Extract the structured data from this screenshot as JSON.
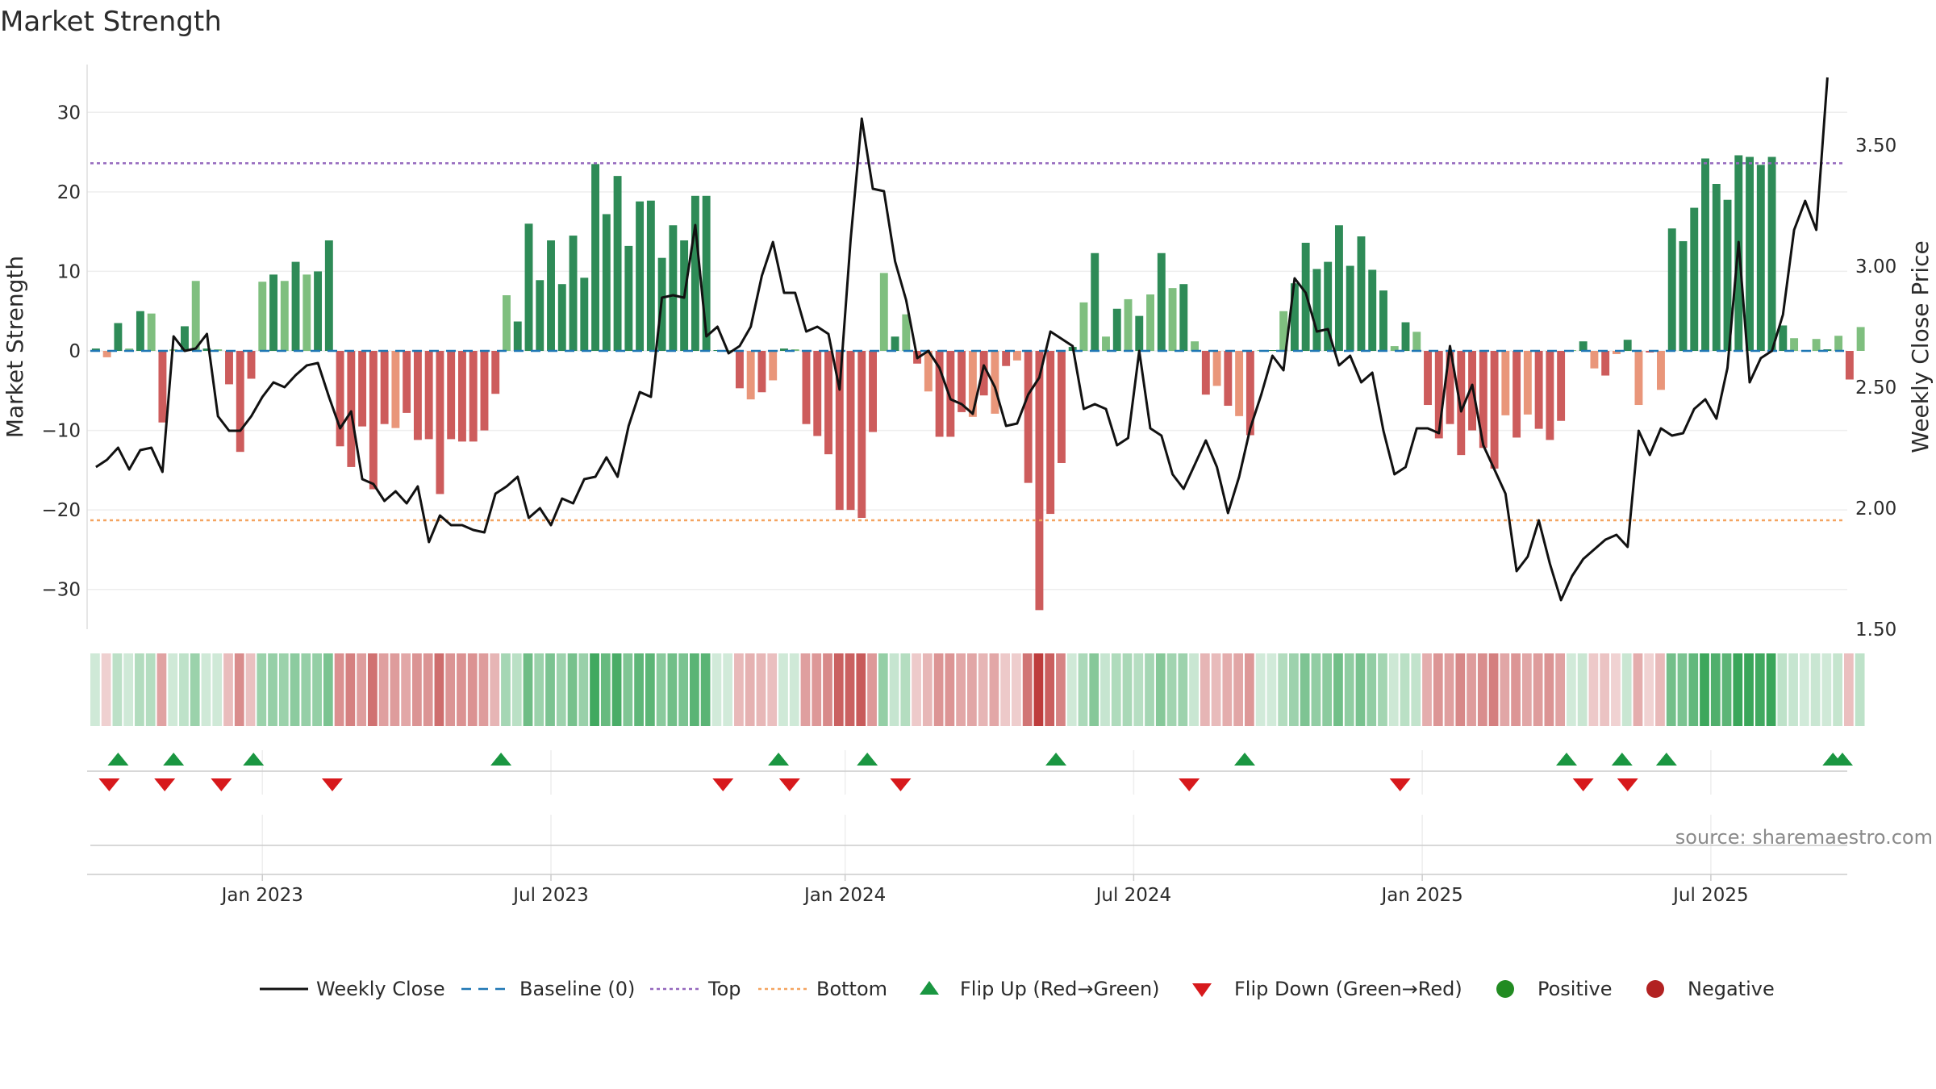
{
  "chart_data": {
    "type": "bar",
    "title": "Market Strength",
    "ylabel": "Market Strength",
    "y2label": "Weekly Close Price",
    "ylim": [
      -35,
      35
    ],
    "y2lim": [
      1.5,
      3.8
    ],
    "yticks": [
      30,
      20,
      10,
      0,
      -10,
      -20,
      -30
    ],
    "ytick_labels": [
      "30",
      "20",
      "10",
      "0",
      "−10",
      "−20",
      "−30"
    ],
    "y2ticks": [
      3.5,
      3.0,
      2.5,
      2.0,
      1.5
    ],
    "y2tick_labels": [
      "3.50",
      "3.00",
      "2.50",
      "2.00",
      "1.50"
    ],
    "xtick_labels": [
      "Jan 2023",
      "Jul 2023",
      "Jan 2024",
      "Jul 2024",
      "Jan 2025",
      "Jul 2025"
    ],
    "xtick_weeks": [
      15,
      41,
      67.5,
      93.5,
      119.5,
      145.5
    ],
    "num_weeks": 158,
    "top_level": 23.6,
    "bottom_level": -21.3,
    "source": "source: sharemaestro.com",
    "legend": [
      "Weekly Close",
      "Baseline (0)",
      "Top",
      "Bottom",
      "Flip Up (Red→Green)",
      "Flip Down (Green→Red)",
      "Positive",
      "Negative"
    ],
    "strength": [
      0.3,
      -0.8,
      3.5,
      0.3,
      5,
      4.7,
      -9,
      0.2,
      3.1,
      8.8,
      0.3,
      0.2,
      -4.2,
      -12.7,
      -3.5,
      8.7,
      9.6,
      8.8,
      11.2,
      9.6,
      10,
      13.9,
      -12,
      -14.6,
      -9.5,
      -17.4,
      -9.2,
      -9.7,
      -7.8,
      -11.2,
      -11.1,
      -18,
      -11.1,
      -11.4,
      -11.4,
      -10,
      -5.4,
      7,
      3.7,
      16,
      8.9,
      13.9,
      8.4,
      14.5,
      9.2,
      23.5,
      17.2,
      22,
      13.2,
      18.8,
      18.9,
      11.7,
      15.8,
      13.9,
      19.5,
      19.5,
      0.1,
      0.1,
      -4.7,
      -6.1,
      -5.2,
      -3.7,
      0.3,
      0.2,
      -9.2,
      -10.7,
      -13,
      -20,
      -20,
      -21,
      -10.2,
      9.8,
      1.8,
      4.6,
      -1.6,
      -5.1,
      -10.8,
      -10.8,
      -7.7,
      -8.3,
      -5.6,
      -7.9,
      -1.9,
      -1.2,
      -16.6,
      -32.6,
      -20.5,
      -14.1,
      0.5,
      6.1,
      12.3,
      1.8,
      5.3,
      6.5,
      4.4,
      7.1,
      12.3,
      7.9,
      8.4,
      1.2,
      -5.5,
      -4.4,
      -6.9,
      -8.2,
      -10.6,
      0.1,
      0.1,
      5,
      8.5,
      13.6,
      10.3,
      11.2,
      15.8,
      10.7,
      14.4,
      10.2,
      7.6,
      0.6,
      3.6,
      2.4,
      -6.8,
      -11,
      -9.2,
      -13.1,
      -10,
      -12.2,
      -14.8,
      -8.1,
      -10.9,
      -8,
      -9.8,
      -11.2,
      -8.8,
      0.1,
      1.2,
      -2.2,
      -3.1,
      -0.4,
      1.4,
      -6.8,
      -0.2,
      -4.9,
      15.4,
      13.8,
      18,
      24.2,
      21,
      19,
      24.6,
      24.4,
      23.4,
      24.4,
      3.2,
      1.6,
      0.1,
      1.5,
      0.2,
      1.9,
      -3.6,
      3
    ],
    "close": [
      2.17,
      2.2,
      2.25,
      2.16,
      2.24,
      2.25,
      2.15,
      2.71,
      2.65,
      2.66,
      2.72,
      2.38,
      2.32,
      2.32,
      2.38,
      2.46,
      2.52,
      2.5,
      2.55,
      2.59,
      2.6,
      2.46,
      2.33,
      2.4,
      2.12,
      2.1,
      2.03,
      2.07,
      2.02,
      2.09,
      1.86,
      1.97,
      1.93,
      1.93,
      1.91,
      1.9,
      2.06,
      2.09,
      2.13,
      1.96,
      2,
      1.93,
      2.04,
      2.02,
      2.12,
      2.13,
      2.21,
      2.13,
      2.34,
      2.48,
      2.46,
      2.87,
      2.88,
      2.87,
      3.17,
      2.71,
      2.75,
      2.64,
      2.67,
      2.75,
      2.96,
      3.1,
      2.89,
      2.89,
      2.73,
      2.75,
      2.72,
      2.49,
      3.11,
      3.61,
      3.32,
      3.31,
      3.02,
      2.86,
      2.62,
      2.65,
      2.58,
      2.45,
      2.43,
      2.39,
      2.59,
      2.5,
      2.34,
      2.35,
      2.47,
      2.54,
      2.73,
      2.7,
      2.67,
      2.41,
      2.43,
      2.41,
      2.26,
      2.29,
      2.65,
      2.33,
      2.3,
      2.14,
      2.08,
      2.18,
      2.28,
      2.17,
      1.98,
      2.13,
      2.33,
      2.47,
      2.63,
      2.57,
      2.95,
      2.89,
      2.73,
      2.74,
      2.59,
      2.63,
      2.52,
      2.56,
      2.32,
      2.14,
      2.17,
      2.33,
      2.33,
      2.31,
      2.67,
      2.4,
      2.51,
      2.26,
      2.16,
      2.06,
      1.74,
      1.8,
      1.95,
      1.77,
      1.62,
      1.72,
      1.79,
      1.83,
      1.87,
      1.89,
      1.84,
      2.32,
      2.22,
      2.33,
      2.3,
      2.31,
      2.41,
      2.45,
      2.37,
      2.58,
      3.1,
      2.52,
      2.62,
      2.65,
      2.8,
      3.15,
      3.27,
      3.15,
      3.78
    ],
    "flip_up_weeks": [
      2,
      7,
      14.2,
      36.5,
      61.5,
      69.5,
      86.5,
      103.5,
      132.5,
      137.5,
      141.5,
      156.5,
      158
    ],
    "flip_down_weeks": [
      1.2,
      6.2,
      11.3,
      21.3,
      56.5,
      62.5,
      72.5,
      98.5,
      117.5,
      134,
      138
    ],
    "series": [
      {
        "name": "Weekly Close",
        "color": "#111111"
      },
      {
        "name": "Baseline (0)",
        "color": "#1f77b4"
      },
      {
        "name": "Top",
        "color": "#9467bd"
      },
      {
        "name": "Bottom",
        "color": "#f4a460"
      },
      {
        "name": "Positive",
        "color": "#228b22"
      },
      {
        "name": "Negative",
        "color": "#b22222"
      }
    ],
    "colors": {
      "pos_strong": "#2e8b57",
      "pos_weak": "#7fbf7f",
      "neg_strong": "#cd5c5c",
      "neg_weak": "#e9967a",
      "flip_up": "#1a9641",
      "flip_down": "#d7191c"
    }
  }
}
